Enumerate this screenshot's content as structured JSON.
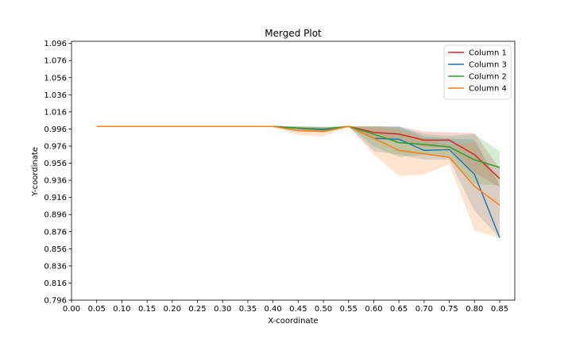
{
  "chart_data": {
    "type": "line",
    "title": "Merged Plot",
    "xlabel": "X-coordinate",
    "ylabel": "Y-coordinate",
    "xlim": [
      0.0,
      0.88
    ],
    "ylim": [
      0.796,
      1.0985
    ],
    "xticks": [
      "0.00",
      "0.05",
      "0.10",
      "0.15",
      "0.20",
      "0.25",
      "0.30",
      "0.35",
      "0.40",
      "0.45",
      "0.50",
      "0.55",
      "0.60",
      "0.65",
      "0.70",
      "0.75",
      "0.80",
      "0.85"
    ],
    "yticks": [
      "0.796",
      "0.816",
      "0.836",
      "0.856",
      "0.876",
      "0.896",
      "0.916",
      "0.936",
      "0.956",
      "0.976",
      "0.996",
      "1.016",
      "1.036",
      "1.056",
      "1.076",
      "1.096"
    ],
    "grid": false,
    "legend_position": "top-right",
    "x": [
      0.05,
      0.4,
      0.45,
      0.5,
      0.55,
      0.6,
      0.65,
      0.7,
      0.75,
      0.8,
      0.85
    ],
    "series": [
      {
        "name": "Column 1",
        "color": "#d62728",
        "values": [
          0.999,
          0.999,
          0.997,
          0.995,
          0.999,
          0.992,
          0.99,
          0.983,
          0.983,
          0.966,
          0.938
        ],
        "lower": [
          0.999,
          0.999,
          0.995,
          0.992,
          0.999,
          0.986,
          0.982,
          0.975,
          0.974,
          0.945,
          0.928
        ],
        "upper": [
          0.999,
          0.999,
          0.999,
          0.998,
          0.999,
          0.999,
          0.999,
          0.993,
          0.992,
          0.991,
          0.95
        ]
      },
      {
        "name": "Column 3",
        "color": "#1f77b4",
        "values": [
          0.999,
          0.999,
          0.997,
          0.995,
          0.999,
          0.985,
          0.984,
          0.971,
          0.972,
          0.943,
          0.869
        ],
        "lower": [
          0.999,
          0.999,
          0.995,
          0.992,
          0.999,
          0.97,
          0.966,
          0.96,
          0.96,
          0.9,
          0.869
        ],
        "upper": [
          0.999,
          0.999,
          0.999,
          0.998,
          0.999,
          0.999,
          0.999,
          0.987,
          0.985,
          0.984,
          0.93
        ]
      },
      {
        "name": "Column 2",
        "color": "#2ca02c",
        "values": [
          0.999,
          0.999,
          0.997,
          0.996,
          0.999,
          0.99,
          0.98,
          0.978,
          0.975,
          0.96,
          0.951
        ],
        "lower": [
          0.999,
          0.999,
          0.995,
          0.993,
          0.999,
          0.976,
          0.963,
          0.966,
          0.962,
          0.932,
          0.93
        ],
        "upper": [
          0.999,
          0.999,
          0.999,
          0.999,
          0.999,
          0.999,
          0.998,
          0.99,
          0.988,
          0.99,
          0.97
        ]
      },
      {
        "name": "Column 4",
        "color": "#ff7f0e",
        "values": [
          0.999,
          0.999,
          0.994,
          0.993,
          0.999,
          0.985,
          0.971,
          0.967,
          0.963,
          0.929,
          0.907
        ],
        "lower": [
          0.999,
          0.999,
          0.989,
          0.987,
          0.999,
          0.966,
          0.941,
          0.943,
          0.955,
          0.877,
          0.869
        ],
        "upper": [
          0.999,
          0.999,
          0.998,
          0.998,
          0.999,
          0.999,
          0.995,
          0.985,
          0.977,
          0.981,
          0.93
        ]
      }
    ]
  }
}
